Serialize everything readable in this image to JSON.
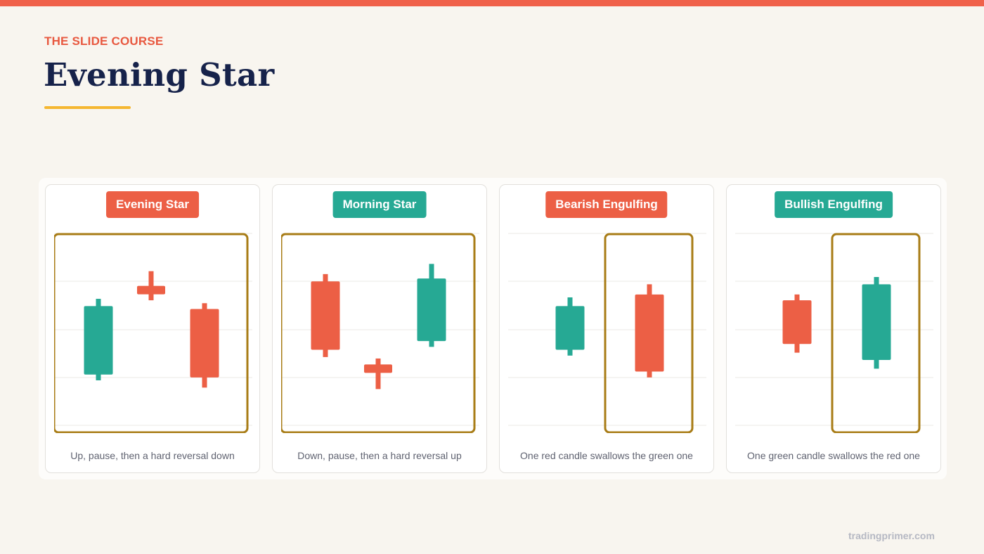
{
  "header": {
    "eyebrow": "THE SLIDE COURSE",
    "title": "Evening Star"
  },
  "colors": {
    "accent": "#f0614a",
    "bullish": "#26a994",
    "bearish": "#ec5f45",
    "highlight": "#a87c16",
    "underline": "#f5b731",
    "title": "#16224a"
  },
  "cards": [
    {
      "badge": "Evening Star",
      "badge_color": "bearish",
      "caption": "Up, pause, then a hard reversal down",
      "highlight": [
        0,
        2
      ],
      "candles": [
        {
          "dir": "up",
          "open": 0.33,
          "close": 0.8,
          "high": 0.85,
          "low": 0.29
        },
        {
          "dir": "doji",
          "open": 0.91,
          "close": 0.91,
          "high": 1.04,
          "low": 0.84
        },
        {
          "dir": "down",
          "open": 0.78,
          "close": 0.31,
          "high": 0.82,
          "low": 0.24
        }
      ]
    },
    {
      "badge": "Morning Star",
      "badge_color": "bullish",
      "caption": "Down, pause, then a hard reversal up",
      "highlight": [
        0,
        2
      ],
      "candles": [
        {
          "dir": "down",
          "open": 0.97,
          "close": 0.5,
          "high": 1.02,
          "low": 0.45
        },
        {
          "dir": "doji",
          "open": 0.37,
          "close": 0.37,
          "high": 0.44,
          "low": 0.23
        },
        {
          "dir": "up",
          "open": 0.56,
          "close": 0.99,
          "high": 1.09,
          "low": 0.52
        }
      ]
    },
    {
      "badge": "Bearish Engulfing",
      "badge_color": "bearish",
      "caption": "One red candle swallows the green one",
      "highlight": [
        1,
        1
      ],
      "candles": [
        {
          "dir": "up",
          "open": 0.5,
          "close": 0.8,
          "high": 0.86,
          "low": 0.46
        },
        {
          "dir": "down",
          "open": 0.88,
          "close": 0.35,
          "high": 0.95,
          "low": 0.31
        }
      ]
    },
    {
      "badge": "Bullish Engulfing",
      "badge_color": "bullish",
      "caption": "One green candle swallows the red one",
      "highlight": [
        1,
        1
      ],
      "candles": [
        {
          "dir": "down",
          "open": 0.84,
          "close": 0.54,
          "high": 0.88,
          "low": 0.48
        },
        {
          "dir": "up",
          "open": 0.43,
          "close": 0.95,
          "high": 1.0,
          "low": 0.37
        }
      ]
    }
  ],
  "footer": "tradingprimer.com"
}
